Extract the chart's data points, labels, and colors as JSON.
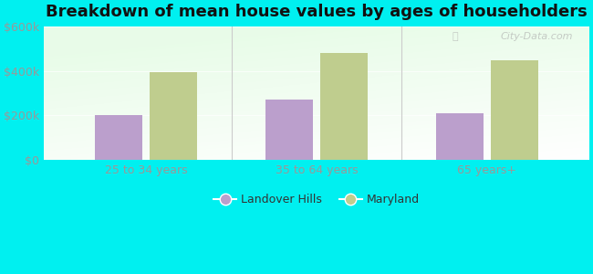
{
  "title": "Breakdown of mean house values by ages of householders",
  "categories": [
    "25 to 34 years",
    "35 to 64 years",
    "65 years+"
  ],
  "landover_hills": [
    200000,
    270000,
    210000
  ],
  "maryland": [
    395000,
    480000,
    450000
  ],
  "ylim": [
    0,
    600000
  ],
  "yticks": [
    0,
    200000,
    400000,
    600000
  ],
  "ytick_labels": [
    "$0",
    "$200k",
    "$400k",
    "$600k"
  ],
  "bar_color_landover": "#bb9fcc",
  "bar_color_maryland": "#bfcd8e",
  "legend_landover": "Landover Hills",
  "legend_maryland": "Maryland",
  "background_color": "#00f0f0",
  "title_fontsize": 13,
  "tick_fontsize": 9,
  "legend_fontsize": 9,
  "bar_width": 0.28,
  "watermark": "City-Data.com"
}
